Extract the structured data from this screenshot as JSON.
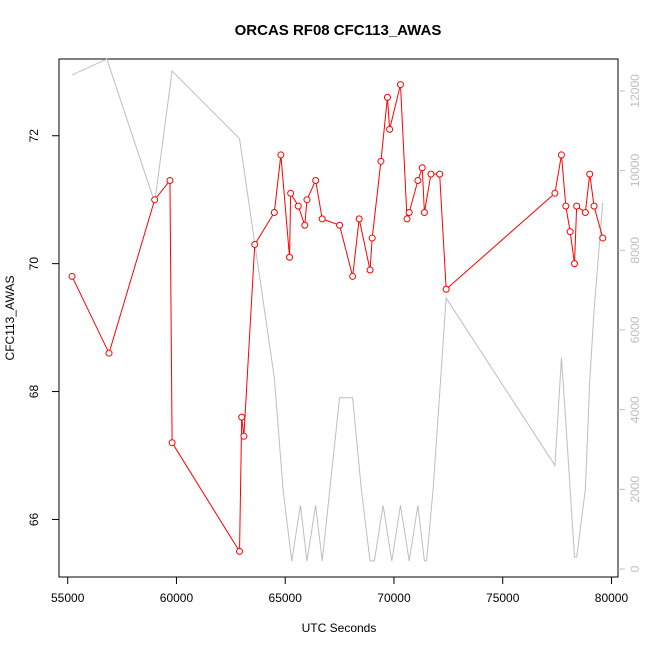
{
  "chart_data": {
    "type": "line",
    "title": "ORCAS RF08 CFC113_AWAS",
    "xlabel": "UTC Seconds",
    "ylabel": "CFC113_AWAS",
    "y2label": "",
    "xlim": [
      54600,
      80300
    ],
    "ylim": [
      65.1,
      73.2
    ],
    "y2lim": [
      -200,
      12800
    ],
    "x_ticks": [
      55000,
      60000,
      65000,
      70000,
      75000,
      80000
    ],
    "x_tick_labels": [
      "55000",
      "60000",
      "65000",
      "70000",
      "75000",
      "80000"
    ],
    "y_ticks": [
      66,
      68,
      70,
      72
    ],
    "y_tick_labels": [
      "66",
      "68",
      "70",
      "72"
    ],
    "y2_ticks": [
      0,
      2000,
      4000,
      6000,
      8000,
      10000,
      12000
    ],
    "y2_tick_labels": [
      "0",
      "2000",
      "4000",
      "6000",
      "8000",
      "10000",
      "12000"
    ],
    "grid": false,
    "series": [
      {
        "name": "",
        "axis": "left",
        "color": "#ff0000",
        "markers": true,
        "x": [
          55200,
          56900,
          59000,
          59700,
          59800,
          62900,
          63000,
          63100,
          63600,
          64500,
          64800,
          65200,
          65250,
          65600,
          65900,
          66000,
          66400,
          66700,
          67500,
          68100,
          68400,
          68900,
          69000,
          69400,
          69700,
          69800,
          70300,
          70600,
          70700,
          71100,
          71300,
          71400,
          71700,
          72100,
          72400,
          77400,
          77700,
          77900,
          78100,
          78300,
          78400,
          78800,
          79000,
          79200,
          79600
        ],
        "y": [
          69.8,
          68.6,
          71.0,
          71.3,
          67.2,
          65.5,
          67.6,
          67.3,
          70.3,
          70.8,
          71.7,
          70.1,
          71.1,
          70.9,
          70.6,
          71.0,
          71.3,
          70.7,
          70.6,
          69.8,
          70.7,
          69.9,
          70.4,
          71.6,
          72.6,
          72.1,
          72.8,
          70.7,
          70.8,
          71.3,
          71.5,
          70.8,
          71.4,
          71.4,
          69.6,
          71.1,
          71.7,
          70.9,
          70.5,
          70.0,
          70.9,
          70.8,
          71.4,
          70.9,
          70.4
        ]
      },
      {
        "name": "",
        "axis": "right",
        "color": "#bebebe",
        "markers": false,
        "x": [
          55200,
          56800,
          59000,
          59800,
          62900,
          63300,
          64500,
          64900,
          65300,
          65700,
          66000,
          66400,
          66700,
          67500,
          68100,
          68500,
          68900,
          69100,
          69500,
          69900,
          70300,
          70700,
          71100,
          71400,
          71500,
          71800,
          72400,
          77400,
          77700,
          77900,
          78300,
          78400,
          78800,
          79000,
          79200,
          79600
        ],
        "y": [
          12400,
          12800,
          9200,
          12500,
          10800,
          9300,
          4800,
          2000,
          200,
          1600,
          200,
          1600,
          200,
          4300,
          4300,
          2000,
          200,
          200,
          1600,
          200,
          1600,
          200,
          1600,
          200,
          200,
          2000,
          6800,
          2600,
          5300,
          3700,
          300,
          300,
          2000,
          4700,
          6500,
          9200
        ]
      }
    ]
  }
}
